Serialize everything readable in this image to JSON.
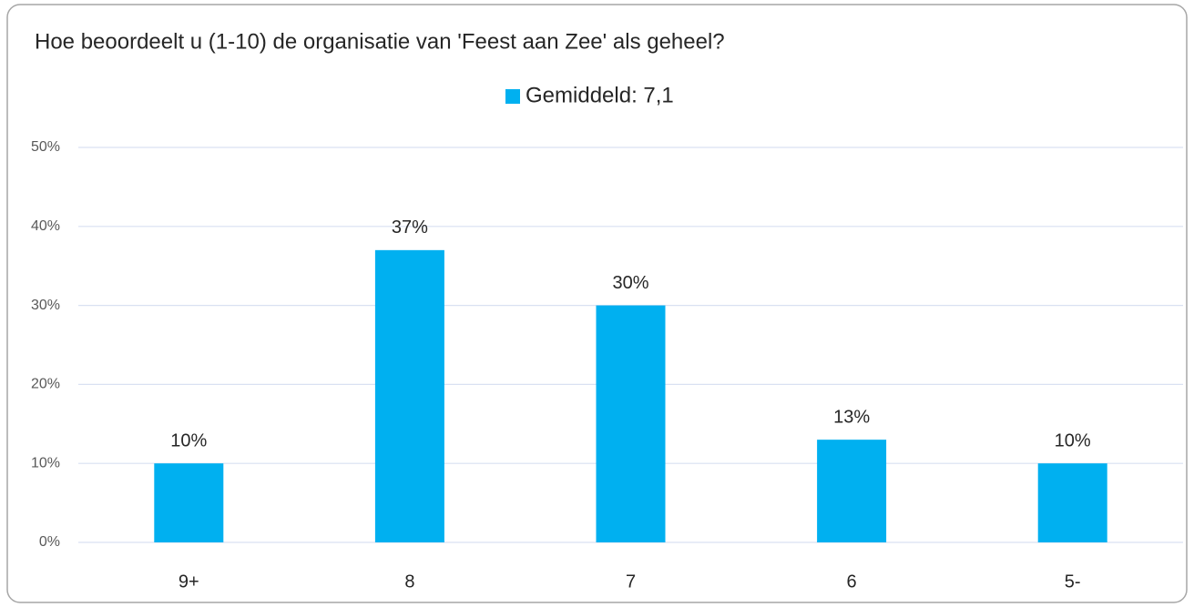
{
  "chart_data": {
    "type": "bar",
    "title": "Hoe beoordeelt u (1-10) de organisatie van 'Feest aan Zee' als geheel?",
    "categories": [
      "9+",
      "8",
      "7",
      "6",
      "5-"
    ],
    "series": [
      {
        "name": "Gemiddeld: 7,1",
        "color": "#00b0f0",
        "values": [
          10,
          37,
          30,
          13,
          10
        ],
        "value_labels": [
          "10%",
          "37%",
          "30%",
          "13%",
          "10%"
        ]
      }
    ],
    "ylim": [
      0,
      50
    ],
    "yticks": [
      {
        "value": 0,
        "label": "0%"
      },
      {
        "value": 10,
        "label": "10%"
      },
      {
        "value": 20,
        "label": "20%"
      },
      {
        "value": 30,
        "label": "30%"
      },
      {
        "value": 40,
        "label": "40%"
      },
      {
        "value": 50,
        "label": "50%"
      }
    ],
    "grid": true,
    "legend": "top"
  }
}
